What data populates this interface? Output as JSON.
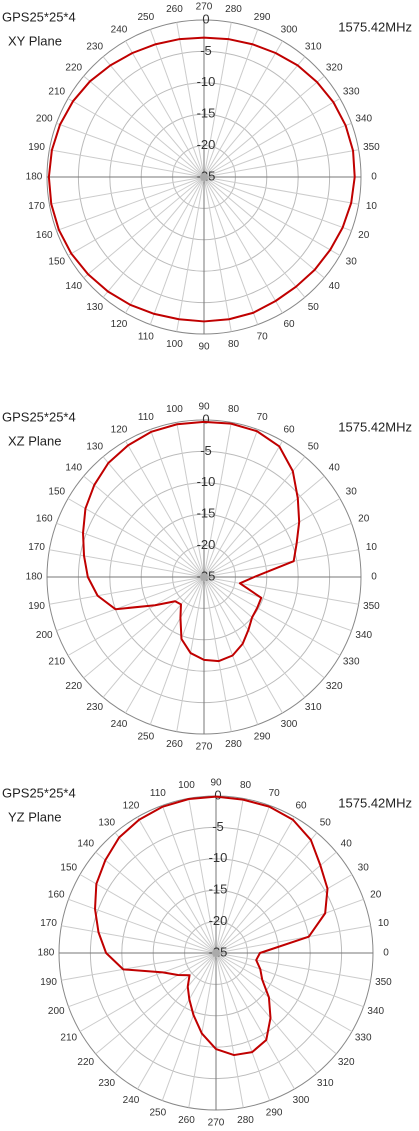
{
  "chart_data": [
    {
      "type": "polar",
      "title": "GPS25*25*4",
      "subtitle": "XY Plane",
      "annotation": "1575.42MHz",
      "direction": "clockwise",
      "color": "#c00000",
      "grid": true,
      "theta": [
        0,
        10,
        20,
        30,
        40,
        50,
        60,
        70,
        80,
        90,
        100,
        110,
        120,
        130,
        140,
        150,
        160,
        170,
        180,
        190,
        200,
        210,
        220,
        230,
        240,
        250,
        260,
        270,
        280,
        290,
        300,
        310,
        320,
        330,
        340,
        350
      ],
      "values": [
        -1,
        -1.2,
        -1.5,
        -1.8,
        -2,
        -2.2,
        -2.2,
        -2,
        -2,
        -2,
        -2,
        -1.8,
        -1.5,
        -1.2,
        -0.9,
        -0.6,
        -0.4,
        -0.3,
        -0.3,
        -0.4,
        -0.6,
        -0.9,
        -1.3,
        -1.8,
        -2.2,
        -2.5,
        -2.7,
        -2.8,
        -2.7,
        -2.5,
        -2.2,
        -1.8,
        -1.5,
        -1.2,
        -1,
        -0.9
      ],
      "rlim": [
        -25,
        0
      ],
      "rticks": [
        -25,
        -20,
        -15,
        -10,
        -5,
        0
      ]
    },
    {
      "type": "polar",
      "title": "GPS25*25*4",
      "subtitle": "XZ Plane",
      "annotation": "1575.42MHz",
      "direction": "counterclockwise",
      "color": "#c00000",
      "grid": true,
      "theta": [
        0,
        10,
        20,
        30,
        40,
        50,
        60,
        70,
        80,
        90,
        100,
        110,
        120,
        130,
        140,
        150,
        160,
        170,
        180,
        190,
        200,
        210,
        220,
        230,
        240,
        250,
        260,
        270,
        280,
        290,
        300,
        310,
        320,
        330,
        340,
        350
      ],
      "values": [
        -17,
        -10.5,
        -9.3,
        -7.5,
        -5.5,
        -3,
        -1,
        -0.3,
        -0.2,
        -0.3,
        -0.3,
        -0.4,
        -0.8,
        -1.3,
        -2.2,
        -3.2,
        -4.5,
        -5.6,
        -6.5,
        -7.8,
        -10,
        -16,
        -19,
        -19.3,
        -17.5,
        -14.5,
        -12.7,
        -11.8,
        -11.4,
        -11.7,
        -12.7,
        -14,
        -15,
        -15.2,
        -15.3,
        -19.2
      ],
      "rlim": [
        -25,
        0
      ],
      "rticks": [
        -25,
        -20,
        -15,
        -10,
        -5,
        0
      ]
    },
    {
      "type": "polar",
      "title": "GPS25*25*4",
      "subtitle": "YZ Plane",
      "annotation": "1575.42MHz",
      "direction": "counterclockwise",
      "color": "#c00000",
      "grid": true,
      "theta": [
        0,
        10,
        20,
        30,
        40,
        50,
        60,
        70,
        80,
        90,
        100,
        110,
        120,
        130,
        140,
        150,
        160,
        170,
        180,
        190,
        200,
        210,
        220,
        230,
        240,
        250,
        260,
        270,
        280,
        290,
        300,
        310,
        320,
        330,
        340,
        350
      ],
      "values": [
        -18,
        -10,
        -6.5,
        -4.5,
        -3.3,
        -1.5,
        -0.5,
        -0.2,
        -0.2,
        -0.1,
        -0.1,
        -0.2,
        -0.5,
        -1,
        -2,
        -3,
        -4.5,
        -6,
        -7.5,
        -10,
        -16,
        -18,
        -19.5,
        -18,
        -16.5,
        -14.5,
        -12,
        -9.7,
        -8.5,
        -8.2,
        -9,
        -11.5,
        -14,
        -16.5,
        -17.5,
        -18.5
      ],
      "rlim": [
        -25,
        0
      ],
      "rticks": [
        -25,
        -20,
        -15,
        -10,
        -5,
        0
      ]
    }
  ]
}
